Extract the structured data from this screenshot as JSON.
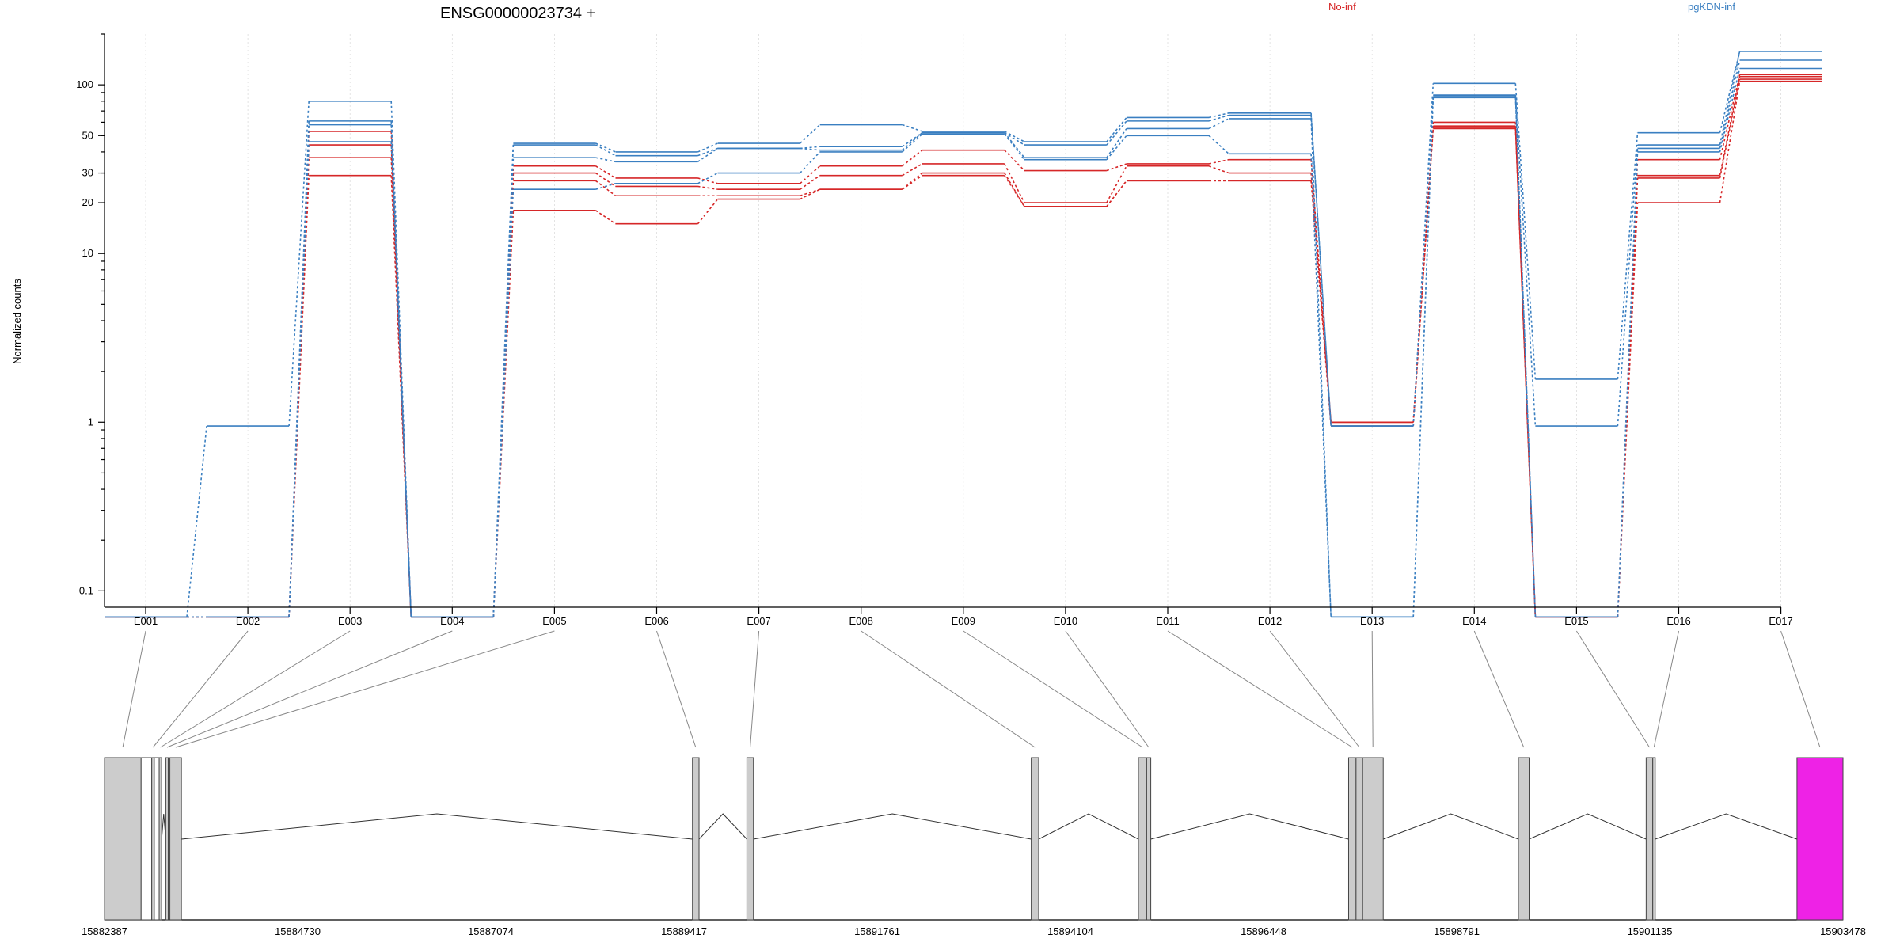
{
  "chart_data": {
    "type": "line",
    "title": "ENSG00000023734 +",
    "ylabel": "Normalized counts",
    "yscale": "log",
    "ylim": [
      0.08,
      200
    ],
    "yticks": [
      0.1,
      1,
      10,
      20,
      30,
      50,
      100
    ],
    "ytick_labels": [
      "0.1",
      "1",
      "10",
      "20",
      "30",
      "50",
      "100"
    ],
    "categories": [
      "E001",
      "E002",
      "E003",
      "E004",
      "E005",
      "E006",
      "E007",
      "E008",
      "E009",
      "E010",
      "E011",
      "E012",
      "E013",
      "E014",
      "E015",
      "E016",
      "E017"
    ],
    "legend": [
      {
        "label": "No-inf",
        "color": "#d62728"
      },
      {
        "label": "pgKDN-inf",
        "color": "#3a7fc1"
      }
    ],
    "series": [
      {
        "group": "No-inf",
        "color": "#d62728",
        "values": [
          0.07,
          0.07,
          53,
          0.07,
          33,
          28,
          26,
          33,
          41,
          31,
          34,
          36,
          1.0,
          60,
          0.07,
          36,
          115
        ]
      },
      {
        "group": "No-inf",
        "color": "#d62728",
        "values": [
          0.07,
          0.07,
          44,
          0.07,
          30,
          25,
          24,
          29,
          34,
          20,
          33,
          30,
          1.0,
          57,
          0.07,
          29,
          112
        ]
      },
      {
        "group": "No-inf",
        "color": "#d62728",
        "values": [
          0.07,
          0.07,
          37,
          0.07,
          27,
          22,
          22,
          24,
          30,
          19,
          27,
          27,
          1.0,
          56,
          0.07,
          28,
          108
        ]
      },
      {
        "group": "No-inf",
        "color": "#d62728",
        "values": [
          0.07,
          0.07,
          29,
          0.07,
          18,
          15,
          21,
          24,
          29,
          19,
          27,
          27,
          0.95,
          55,
          0.07,
          20,
          105
        ]
      },
      {
        "group": "pgKDN-inf",
        "color": "#3a7fc1",
        "values": [
          0.07,
          0.95,
          80,
          0.07,
          45,
          40,
          45,
          58,
          53,
          46,
          64,
          68,
          0.95,
          102,
          1.8,
          52,
          158
        ]
      },
      {
        "group": "pgKDN-inf",
        "color": "#3a7fc1",
        "values": [
          0.07,
          0.07,
          61,
          0.07,
          44,
          38,
          42,
          43,
          52,
          44,
          61,
          66,
          0.95,
          87,
          0.95,
          44,
          158
        ]
      },
      {
        "group": "pgKDN-inf",
        "color": "#3a7fc1",
        "values": [
          0.07,
          0.07,
          58,
          0.07,
          37,
          35,
          42,
          41,
          52,
          37,
          55,
          63,
          0.07,
          86,
          0.07,
          42,
          140
        ]
      },
      {
        "group": "pgKDN-inf",
        "color": "#3a7fc1",
        "values": [
          0.07,
          0.07,
          46,
          0.07,
          24,
          26,
          30,
          40,
          51,
          36,
          50,
          39,
          0.07,
          84,
          0.07,
          40,
          125
        ]
      }
    ],
    "genomic_axis": {
      "labels": [
        "15882387",
        "15884730",
        "15887074",
        "15889417",
        "15891761",
        "15894104",
        "15896448",
        "15898791",
        "15901135",
        "15903478"
      ]
    },
    "gene_model": {
      "exon_fill": "#cccccc",
      "highlight_fill": "#ee22e6",
      "exons": [
        {
          "id": "E001",
          "start": 15882387,
          "end": 15882830
        },
        {
          "id": "E002",
          "start": 15882960,
          "end": 15882990
        },
        {
          "id": "E003",
          "start": 15883050,
          "end": 15883080
        },
        {
          "id": "E004",
          "start": 15883130,
          "end": 15883160
        },
        {
          "id": "E005",
          "start": 15883180,
          "end": 15883320
        },
        {
          "id": "E006",
          "start": 15889520,
          "end": 15889600
        },
        {
          "id": "E007",
          "start": 15890180,
          "end": 15890260
        },
        {
          "id": "E008",
          "start": 15893630,
          "end": 15893720
        },
        {
          "id": "E009",
          "start": 15894930,
          "end": 15895030
        },
        {
          "id": "E010",
          "start": 15895030,
          "end": 15895080
        },
        {
          "id": "E011",
          "start": 15897480,
          "end": 15897570
        },
        {
          "id": "E012",
          "start": 15897570,
          "end": 15897650
        },
        {
          "id": "E013",
          "start": 15897650,
          "end": 15897900
        },
        {
          "id": "E014",
          "start": 15899540,
          "end": 15899670
        },
        {
          "id": "E015",
          "start": 15901090,
          "end": 15901170
        },
        {
          "id": "E016",
          "start": 15901170,
          "end": 15901200
        },
        {
          "id": "E017",
          "start": 15902920,
          "end": 15903478,
          "highlight": true
        }
      ],
      "internal_exons": [
        {
          "start": 15882830,
          "end": 15882960,
          "fill": "#ffffff"
        },
        {
          "start": 15882990,
          "end": 15883050,
          "fill": "#ffffff"
        }
      ]
    }
  }
}
